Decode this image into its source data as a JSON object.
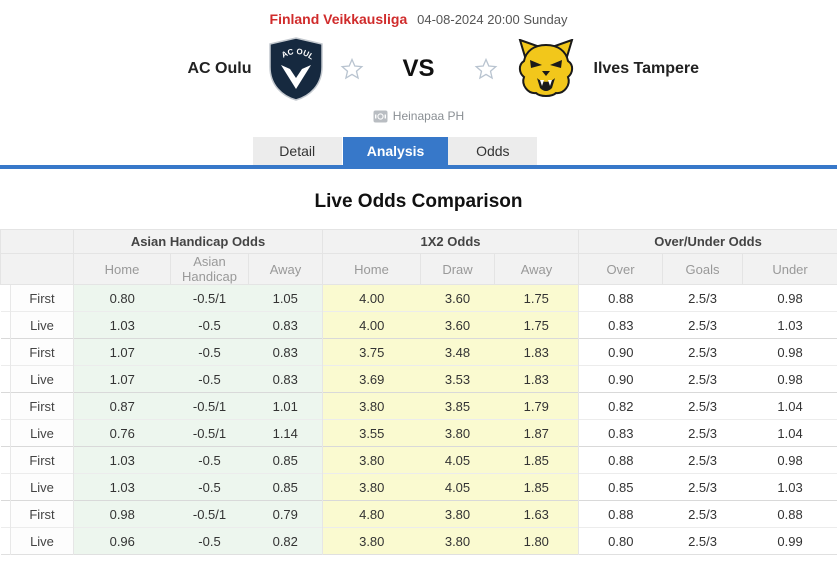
{
  "header": {
    "league": "Finland Veikkausliga",
    "datetime": "04-08-2024 20:00 Sunday",
    "home_team": "AC Oulu",
    "away_team": "Ilves Tampere",
    "vs_label": "VS",
    "venue": "Heinapaa PH",
    "home_logo_text": "AC OULU"
  },
  "tabs": [
    {
      "label": "Detail",
      "active": false
    },
    {
      "label": "Analysis",
      "active": true
    },
    {
      "label": "Odds",
      "active": false
    }
  ],
  "analysis": {
    "title": "Live Odds Comparison"
  },
  "odds_table": {
    "groups": [
      "Asian Handicap Odds",
      "1X2 Odds",
      "Over/Under Odds"
    ],
    "columns": [
      "Home",
      "Asian Handicap",
      "Away",
      "Home",
      "Draw",
      "Away",
      "Over",
      "Goals",
      "Under"
    ],
    "rows": [
      {
        "label": "First",
        "values": [
          "0.80",
          "-0.5/1",
          "1.05",
          "4.00",
          "3.60",
          "1.75",
          "0.88",
          "2.5/3",
          "0.98"
        ]
      },
      {
        "label": "Live",
        "values": [
          "1.03",
          "-0.5",
          "0.83",
          "4.00",
          "3.60",
          "1.75",
          "0.83",
          "2.5/3",
          "1.03"
        ]
      },
      {
        "label": "First",
        "values": [
          "1.07",
          "-0.5",
          "0.83",
          "3.75",
          "3.48",
          "1.83",
          "0.90",
          "2.5/3",
          "0.98"
        ]
      },
      {
        "label": "Live",
        "values": [
          "1.07",
          "-0.5",
          "0.83",
          "3.69",
          "3.53",
          "1.83",
          "0.90",
          "2.5/3",
          "0.98"
        ]
      },
      {
        "label": "First",
        "values": [
          "0.87",
          "-0.5/1",
          "1.01",
          "3.80",
          "3.85",
          "1.79",
          "0.82",
          "2.5/3",
          "1.04"
        ]
      },
      {
        "label": "Live",
        "values": [
          "0.76",
          "-0.5/1",
          "1.14",
          "3.55",
          "3.80",
          "1.87",
          "0.83",
          "2.5/3",
          "1.04"
        ]
      },
      {
        "label": "First",
        "values": [
          "1.03",
          "-0.5",
          "0.85",
          "3.80",
          "4.05",
          "1.85",
          "0.88",
          "2.5/3",
          "0.98"
        ]
      },
      {
        "label": "Live",
        "values": [
          "1.03",
          "-0.5",
          "0.85",
          "3.80",
          "4.05",
          "1.85",
          "0.85",
          "2.5/3",
          "1.03"
        ]
      },
      {
        "label": "First",
        "values": [
          "0.98",
          "-0.5/1",
          "0.79",
          "4.80",
          "3.80",
          "1.63",
          "0.88",
          "2.5/3",
          "0.88"
        ]
      },
      {
        "label": "Live",
        "values": [
          "0.96",
          "-0.5",
          "0.82",
          "3.80",
          "3.80",
          "1.80",
          "0.80",
          "2.5/3",
          "0.99"
        ]
      }
    ]
  },
  "colors": {
    "accent_blue": "#3778c9",
    "league_red": "#d02b2b",
    "handicap_green": "#edf6ee",
    "x12_yellow": "#fafad0",
    "home_badge_navy": "#16293f",
    "away_badge_yellow": "#f2c71b"
  }
}
